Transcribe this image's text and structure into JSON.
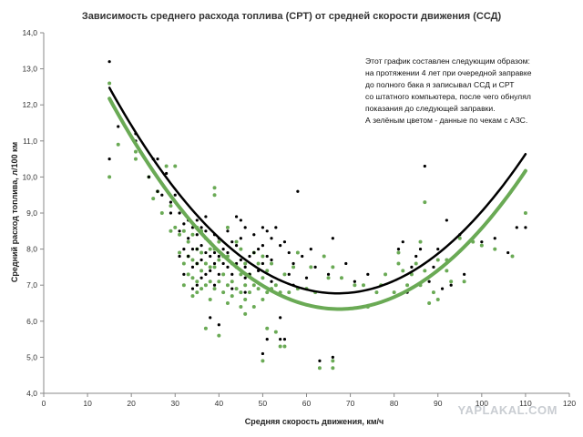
{
  "chart_data": {
    "type": "scatter",
    "title": "Зависимость среднего расхода топлива (СРТ) от  средней скорости движения  (ССД)",
    "xlabel": "Средняя скорость движения, км/ч",
    "ylabel": "Средний расход топлива, л/100 км",
    "xlim": [
      0,
      120
    ],
    "ylim": [
      4.0,
      14.0
    ],
    "x_ticks": [
      "0",
      "10",
      "20",
      "30",
      "40",
      "50",
      "60",
      "70",
      "80",
      "90",
      "100",
      "110",
      "120"
    ],
    "y_ticks": [
      "4,0",
      "5,0",
      "6,0",
      "7,0",
      "8,0",
      "9,0",
      "10,0",
      "11,0",
      "12,0",
      "13,0",
      "14,0"
    ],
    "grid": false,
    "annotation": [
      "Этот график составлен следующим образом:",
      "на протяжении 4 лет при очередной заправке",
      "до полного бака я записывал ССД и СРТ",
      "со штатного компьютера, после чего обнулял",
      "показания до следующей заправки.",
      "А зелёным цветом - данные по чекам с АЗС."
    ],
    "series": [
      {
        "color": "#000000",
        "kind": "points",
        "points": [
          [
            15,
            13.2
          ],
          [
            15,
            10.5
          ],
          [
            17,
            11.4
          ],
          [
            21,
            11.2
          ],
          [
            21,
            11.0
          ],
          [
            22,
            10.7
          ],
          [
            24,
            10.0
          ],
          [
            25,
            10.5
          ],
          [
            26,
            10.5
          ],
          [
            26,
            9.6
          ],
          [
            27,
            9.5
          ],
          [
            28,
            10.1
          ],
          [
            29,
            9.3
          ],
          [
            29,
            9.0
          ],
          [
            30,
            9.5
          ],
          [
            31,
            9.0
          ],
          [
            31,
            8.5
          ],
          [
            31,
            7.8
          ],
          [
            32,
            8.7
          ],
          [
            32,
            8.0
          ],
          [
            32,
            7.3
          ],
          [
            33,
            8.8
          ],
          [
            33,
            8.3
          ],
          [
            33,
            7.8
          ],
          [
            34,
            8.6
          ],
          [
            34,
            8.0
          ],
          [
            34,
            7.5
          ],
          [
            34,
            6.9
          ],
          [
            35,
            8.8
          ],
          [
            35,
            8.4
          ],
          [
            35,
            8.0
          ],
          [
            35,
            7.6
          ],
          [
            35,
            7.0
          ],
          [
            36,
            8.6
          ],
          [
            36,
            8.1
          ],
          [
            36,
            7.7
          ],
          [
            36,
            7.2
          ],
          [
            37,
            8.9
          ],
          [
            37,
            8.5
          ],
          [
            37,
            7.9
          ],
          [
            37,
            7.3
          ],
          [
            38,
            8.2
          ],
          [
            38,
            7.8
          ],
          [
            38,
            7.4
          ],
          [
            38,
            6.1
          ],
          [
            39,
            8.4
          ],
          [
            39,
            7.9
          ],
          [
            39,
            7.6
          ],
          [
            39,
            7.0
          ],
          [
            40,
            8.3
          ],
          [
            40,
            7.8
          ],
          [
            40,
            7.3
          ],
          [
            40,
            5.9
          ],
          [
            41,
            8.0
          ],
          [
            41,
            7.6
          ],
          [
            42,
            8.5
          ],
          [
            42,
            7.5
          ],
          [
            42,
            7.9
          ],
          [
            43,
            8.2
          ],
          [
            43,
            7.3
          ],
          [
            43,
            6.9
          ],
          [
            44,
            8.9
          ],
          [
            44,
            8.1
          ],
          [
            44,
            7.6
          ],
          [
            45,
            8.8
          ],
          [
            45,
            8.3
          ],
          [
            45,
            7.7
          ],
          [
            46,
            8.6
          ],
          [
            46,
            7.5
          ],
          [
            46,
            7.2
          ],
          [
            46,
            6.8
          ],
          [
            47,
            7.8
          ],
          [
            47,
            7.3
          ],
          [
            48,
            8.4
          ],
          [
            48,
            7.9
          ],
          [
            49,
            8.0
          ],
          [
            49,
            7.4
          ],
          [
            50,
            8.6
          ],
          [
            50,
            8.1
          ],
          [
            50,
            7.6
          ],
          [
            50,
            5.1
          ],
          [
            51,
            8.5
          ],
          [
            51,
            7.8
          ],
          [
            51,
            5.5
          ],
          [
            52,
            8.3
          ],
          [
            52,
            7.7
          ],
          [
            52,
            7.1
          ],
          [
            53,
            8.6
          ],
          [
            54,
            8.1
          ],
          [
            54,
            6.1
          ],
          [
            54,
            5.5
          ],
          [
            55,
            8.2
          ],
          [
            55,
            5.5
          ],
          [
            56,
            7.9
          ],
          [
            56,
            7.3
          ],
          [
            57,
            7.6
          ],
          [
            57,
            7.0
          ],
          [
            58,
            9.6
          ],
          [
            59,
            7.8
          ],
          [
            60,
            7.2
          ],
          [
            61,
            8.0
          ],
          [
            62,
            7.5
          ],
          [
            63,
            4.9
          ],
          [
            65,
            7.3
          ],
          [
            66,
            8.3
          ],
          [
            66,
            5.0
          ],
          [
            69,
            7.6
          ],
          [
            71,
            7.1
          ],
          [
            74,
            7.3
          ],
          [
            81,
            8.0
          ],
          [
            82,
            8.2
          ],
          [
            83,
            6.8
          ],
          [
            84,
            7.5
          ],
          [
            85,
            7.8
          ],
          [
            86,
            8.0
          ],
          [
            87,
            10.3
          ],
          [
            88,
            7.1
          ],
          [
            89,
            7.5
          ],
          [
            90,
            8.0
          ],
          [
            91,
            6.9
          ],
          [
            92,
            8.8
          ],
          [
            93,
            7.0
          ],
          [
            95,
            8.4
          ],
          [
            96,
            7.3
          ],
          [
            98,
            8.3
          ],
          [
            100,
            8.2
          ],
          [
            103,
            8.3
          ],
          [
            106,
            7.9
          ],
          [
            108,
            8.6
          ],
          [
            110,
            8.6
          ]
        ]
      },
      {
        "color": "#6aaa55",
        "kind": "points",
        "points": [
          [
            15,
            12.6
          ],
          [
            15,
            10.0
          ],
          [
            17,
            10.9
          ],
          [
            21,
            10.7
          ],
          [
            21,
            10.5
          ],
          [
            24,
            10.0
          ],
          [
            25,
            9.4
          ],
          [
            26,
            9.6
          ],
          [
            27,
            9.0
          ],
          [
            28,
            10.3
          ],
          [
            29,
            9.2
          ],
          [
            29,
            8.5
          ],
          [
            30,
            8.6
          ],
          [
            30,
            10.3
          ],
          [
            31,
            8.4
          ],
          [
            31,
            7.9
          ],
          [
            32,
            8.5
          ],
          [
            32,
            7.6
          ],
          [
            32,
            7.0
          ],
          [
            33,
            8.2
          ],
          [
            33,
            7.8
          ],
          [
            33,
            7.3
          ],
          [
            34,
            8.4
          ],
          [
            34,
            7.7
          ],
          [
            34,
            7.2
          ],
          [
            34,
            6.7
          ],
          [
            35,
            8.6
          ],
          [
            35,
            8.0
          ],
          [
            35,
            7.6
          ],
          [
            35,
            7.1
          ],
          [
            35,
            6.8
          ],
          [
            36,
            8.5
          ],
          [
            36,
            7.9
          ],
          [
            36,
            7.4
          ],
          [
            36,
            6.9
          ],
          [
            37,
            8.3
          ],
          [
            37,
            7.6
          ],
          [
            37,
            7.0
          ],
          [
            37,
            5.8
          ],
          [
            38,
            8.0
          ],
          [
            38,
            7.5
          ],
          [
            38,
            7.1
          ],
          [
            38,
            6.6
          ],
          [
            39,
            9.7
          ],
          [
            39,
            9.5
          ],
          [
            39,
            8.0
          ],
          [
            39,
            7.5
          ],
          [
            39,
            6.9
          ],
          [
            40,
            8.2
          ],
          [
            40,
            7.7
          ],
          [
            40,
            7.1
          ],
          [
            40,
            5.6
          ],
          [
            41,
            7.8
          ],
          [
            41,
            7.3
          ],
          [
            41,
            6.8
          ],
          [
            42,
            8.6
          ],
          [
            42,
            7.8
          ],
          [
            42,
            7.0
          ],
          [
            42,
            6.5
          ],
          [
            43,
            7.6
          ],
          [
            43,
            7.1
          ],
          [
            43,
            6.7
          ],
          [
            44,
            8.2
          ],
          [
            44,
            7.5
          ],
          [
            44,
            6.9
          ],
          [
            45,
            8.0
          ],
          [
            45,
            7.3
          ],
          [
            45,
            6.8
          ],
          [
            45,
            6.4
          ],
          [
            46,
            7.6
          ],
          [
            46,
            7.0
          ],
          [
            46,
            6.6
          ],
          [
            46,
            6.2
          ],
          [
            47,
            7.3
          ],
          [
            47,
            6.8
          ],
          [
            48,
            7.9
          ],
          [
            48,
            7.0
          ],
          [
            48,
            6.4
          ],
          [
            49,
            7.6
          ],
          [
            49,
            6.9
          ],
          [
            50,
            7.8
          ],
          [
            50,
            7.2
          ],
          [
            50,
            6.6
          ],
          [
            50,
            4.9
          ],
          [
            51,
            7.4
          ],
          [
            51,
            6.8
          ],
          [
            51,
            5.8
          ],
          [
            52,
            7.6
          ],
          [
            52,
            6.9
          ],
          [
            53,
            7.0
          ],
          [
            53,
            5.7
          ],
          [
            54,
            6.8
          ],
          [
            54,
            5.3
          ],
          [
            55,
            7.3
          ],
          [
            55,
            5.3
          ],
          [
            56,
            6.8
          ],
          [
            57,
            7.5
          ],
          [
            58,
            6.9
          ],
          [
            58,
            7.9
          ],
          [
            60,
            6.9
          ],
          [
            61,
            7.5
          ],
          [
            62,
            6.8
          ],
          [
            63,
            4.7
          ],
          [
            64,
            7.8
          ],
          [
            65,
            7.2
          ],
          [
            66,
            7.5
          ],
          [
            66,
            4.9
          ],
          [
            66,
            4.7
          ],
          [
            68,
            7.2
          ],
          [
            71,
            7.0
          ],
          [
            73,
            7.0
          ],
          [
            74,
            6.4
          ],
          [
            76,
            6.8
          ],
          [
            77,
            7.0
          ],
          [
            78,
            7.3
          ],
          [
            80,
            6.8
          ],
          [
            81,
            7.9
          ],
          [
            81,
            7.6
          ],
          [
            82,
            7.4
          ],
          [
            83,
            7.0
          ],
          [
            84,
            7.3
          ],
          [
            85,
            7.6
          ],
          [
            86,
            8.2
          ],
          [
            86,
            7.0
          ],
          [
            87,
            9.3
          ],
          [
            87,
            7.4
          ],
          [
            88,
            6.5
          ],
          [
            89,
            6.8
          ],
          [
            90,
            7.7
          ],
          [
            90,
            6.6
          ],
          [
            92,
            7.7
          ],
          [
            92,
            7.4
          ],
          [
            93,
            7.1
          ],
          [
            95,
            8.3
          ],
          [
            96,
            7.1
          ],
          [
            98,
            8.2
          ],
          [
            100,
            8.1
          ],
          [
            103,
            8.0
          ],
          [
            107,
            7.8
          ],
          [
            110,
            9.0
          ]
        ]
      },
      {
        "color": "#000000",
        "kind": "trendline",
        "x_range": [
          15,
          110
        ],
        "coefficients": [
          16.23,
          -0.28186,
          0.0021
        ]
      },
      {
        "color": "#6aaa55",
        "kind": "trendline",
        "x_range": [
          15,
          110
        ],
        "coefficients": [
          15.99,
          -0.28611,
          0.00212
        ]
      }
    ]
  },
  "watermark": "YAPLAKAL.COM"
}
